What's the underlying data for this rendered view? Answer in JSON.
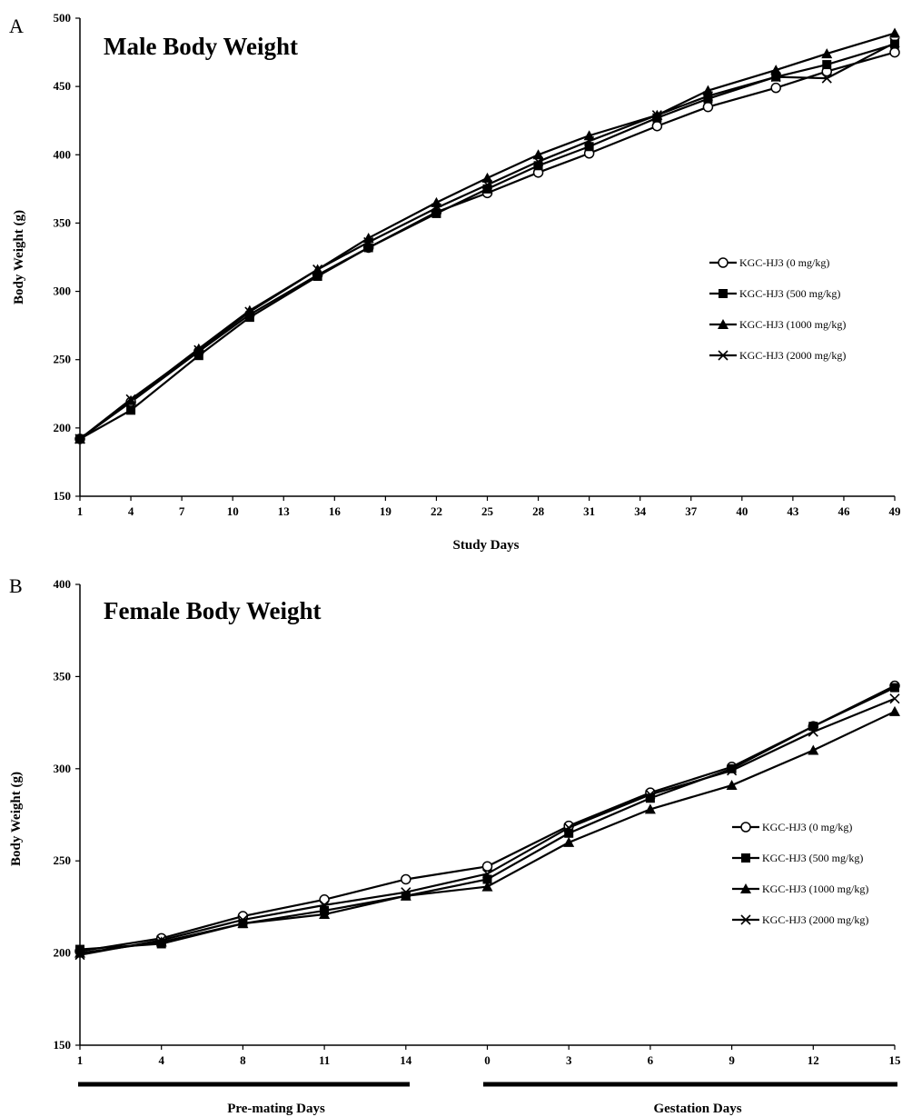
{
  "chart_data": [
    {
      "panel_label": "A",
      "type": "line",
      "title": "Male Body Weight",
      "xlabel": "Study Days",
      "ylabel": "Body Weight (g)",
      "ylim": [
        150,
        500
      ],
      "yticks": [
        150,
        200,
        250,
        300,
        350,
        400,
        450,
        500
      ],
      "xlim": [
        1,
        49
      ],
      "xticks": [
        1,
        4,
        7,
        10,
        13,
        16,
        19,
        22,
        25,
        28,
        31,
        34,
        37,
        40,
        43,
        46,
        49
      ],
      "legend_position": "right",
      "grid": false,
      "series": [
        {
          "name": "KGC-HJ3 (0 mg/kg)",
          "marker": "circle-open",
          "x": [
            1,
            4,
            8,
            11,
            15,
            18,
            22,
            25,
            28,
            31,
            35,
            38,
            42,
            45,
            49
          ],
          "y": [
            192,
            219,
            256,
            283,
            312,
            332,
            358,
            372,
            387,
            401,
            421,
            435,
            449,
            461,
            475
          ]
        },
        {
          "name": "KGC-HJ3 (500 mg/kg)",
          "marker": "square",
          "x": [
            1,
            4,
            8,
            11,
            15,
            18,
            22,
            25,
            28,
            31,
            35,
            38,
            42,
            45,
            49
          ],
          "y": [
            192,
            213,
            253,
            281,
            311,
            332,
            357,
            375,
            392,
            406,
            427,
            441,
            457,
            466,
            481
          ]
        },
        {
          "name": "KGC-HJ3 (1000 mg/kg)",
          "marker": "triangle",
          "x": [
            1,
            4,
            8,
            11,
            15,
            18,
            22,
            25,
            28,
            31,
            35,
            38,
            42,
            45,
            49
          ],
          "y": [
            192,
            220,
            258,
            286,
            316,
            339,
            365,
            383,
            400,
            414,
            429,
            447,
            462,
            474,
            489
          ]
        },
        {
          "name": "KGC-HJ3 (2000 mg/kg)",
          "marker": "x",
          "x": [
            1,
            4,
            8,
            11,
            15,
            18,
            22,
            25,
            28,
            31,
            35,
            38,
            42,
            45,
            49
          ],
          "y": [
            192,
            221,
            257,
            285,
            316,
            336,
            361,
            378,
            395,
            410,
            429,
            443,
            457,
            456,
            482
          ]
        }
      ]
    },
    {
      "panel_label": "B",
      "type": "line",
      "title": "Female Body Weight",
      "ylabel": "Body Weight (g)",
      "ylim": [
        150,
        400
      ],
      "yticks": [
        150,
        200,
        250,
        300,
        350,
        400
      ],
      "categories": [
        "1",
        "4",
        "8",
        "11",
        "14",
        "0",
        "3",
        "6",
        "9",
        "12",
        "15"
      ],
      "legend_position": "right",
      "grid": false,
      "period_labels": [
        "Pre-mating Days",
        "Gestation Days"
      ],
      "series": [
        {
          "name": "KGC-HJ3 (0 mg/kg)",
          "marker": "circle-open",
          "values": [
            201,
            208,
            220,
            229,
            240,
            247,
            269,
            287,
            301,
            323,
            345
          ]
        },
        {
          "name": "KGC-HJ3 (500 mg/kg)",
          "marker": "square",
          "values": [
            202,
            205,
            216,
            223,
            231,
            240,
            265,
            284,
            300,
            323,
            344
          ]
        },
        {
          "name": "KGC-HJ3 (1000 mg/kg)",
          "marker": "triangle",
          "values": [
            200,
            206,
            216,
            221,
            231,
            236,
            260,
            278,
            291,
            310,
            331
          ]
        },
        {
          "name": "KGC-HJ3 (2000 mg/kg)",
          "marker": "x",
          "values": [
            199,
            207,
            218,
            226,
            233,
            243,
            268,
            286,
            299,
            320,
            338
          ]
        }
      ]
    }
  ]
}
